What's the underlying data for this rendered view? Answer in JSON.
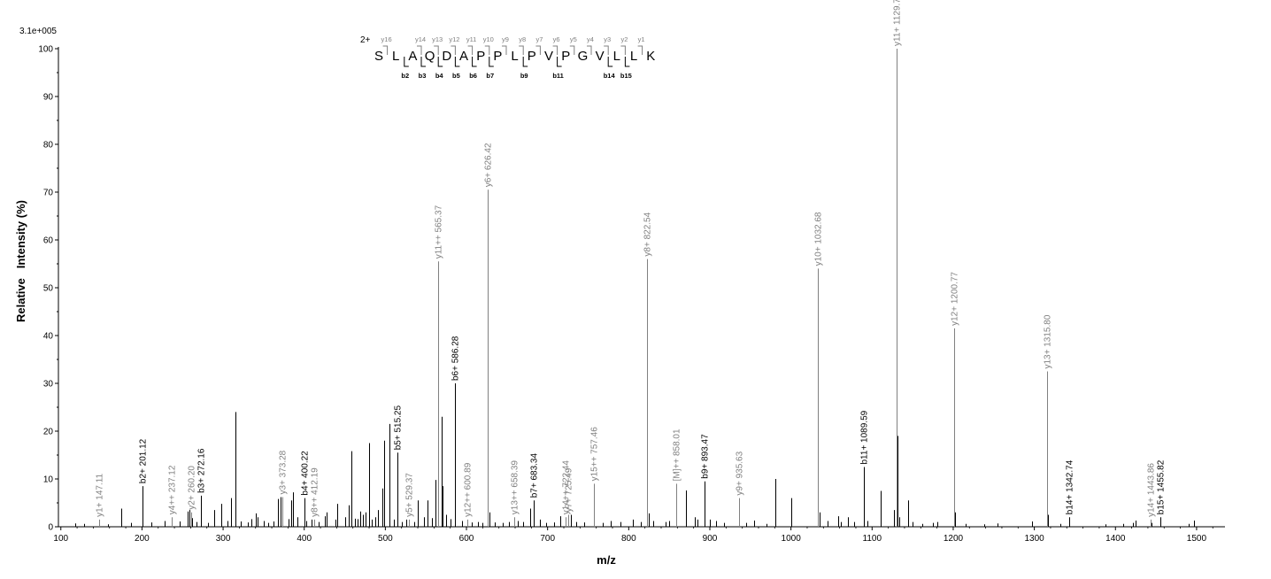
{
  "chart_data": {
    "type": "bar",
    "y_scale_label": "3.1e+005",
    "xlabel": "m/z",
    "ylabel": "Relative   Intensity (%)",
    "xlim": [
      97,
      1535
    ],
    "ylim": [
      0,
      100
    ],
    "x_ticks": [
      100,
      200,
      300,
      400,
      500,
      600,
      700,
      800,
      900,
      1000,
      1100,
      1200,
      1300,
      1400,
      1500
    ],
    "y_ticks": [
      0,
      10,
      20,
      30,
      40,
      50,
      60,
      70,
      80,
      90,
      100
    ],
    "colors": {
      "y_ion": "#808080",
      "b_ion": "#000000",
      "background_peak": "#000000"
    },
    "annotated_peaks": [
      {
        "mz": 147.11,
        "intensity": 1.5,
        "label": "y1+ 147.11",
        "series": "y"
      },
      {
        "mz": 201.12,
        "intensity": 8.5,
        "label": "b2+ 201.12",
        "series": "b"
      },
      {
        "mz": 237.12,
        "intensity": 2.0,
        "label": "y4++ 237.12",
        "series": "y"
      },
      {
        "mz": 260.2,
        "intensity": 3.0,
        "label": "y2+ 260.20",
        "series": "y"
      },
      {
        "mz": 272.16,
        "intensity": 6.5,
        "label": "b3+ 272.16",
        "series": "b"
      },
      {
        "mz": 373.28,
        "intensity": 6.2,
        "label": "y3+ 373.28",
        "series": "y"
      },
      {
        "mz": 400.22,
        "intensity": 6.0,
        "label": "b4+ 400.22",
        "series": "b"
      },
      {
        "mz": 412.19,
        "intensity": 1.5,
        "label": "y8++ 412.19",
        "series": "y"
      },
      {
        "mz": 515.25,
        "intensity": 15.5,
        "label": "b5+ 515.25",
        "series": "b"
      },
      {
        "mz": 529.37,
        "intensity": 1.5,
        "label": "y5+ 529.37",
        "series": "y"
      },
      {
        "mz": 565.37,
        "intensity": 55.5,
        "label": "y11++ 565.37",
        "series": "y"
      },
      {
        "mz": 586.28,
        "intensity": 30.0,
        "label": "b6+ 586.28",
        "series": "b"
      },
      {
        "mz": 600.89,
        "intensity": 1.5,
        "label": "y12++ 600.89",
        "series": "y"
      },
      {
        "mz": 626.42,
        "intensity": 70.5,
        "label": "y6+ 626.42",
        "series": "y"
      },
      {
        "mz": 658.39,
        "intensity": 2.0,
        "label": "y13++ 658.39",
        "series": "y"
      },
      {
        "mz": 683.34,
        "intensity": 5.5,
        "label": "b7+ 683.34",
        "series": "b"
      },
      {
        "mz": 722.44,
        "intensity": 2.0,
        "label": "y14++ 722.44",
        "series": "y"
      },
      {
        "mz": 725.49,
        "intensity": 2.5,
        "label": "y7+ 725.49",
        "series": "y"
      },
      {
        "mz": 757.46,
        "intensity": 9.0,
        "label": "y15++ 757.46",
        "series": "y"
      },
      {
        "mz": 822.54,
        "intensity": 56.0,
        "label": "y8+ 822.54",
        "series": "y"
      },
      {
        "mz": 858.01,
        "intensity": 9.0,
        "label": "[M]++ 858.01",
        "series": "y"
      },
      {
        "mz": 893.47,
        "intensity": 9.5,
        "label": "b9+ 893.47",
        "series": "b"
      },
      {
        "mz": 935.63,
        "intensity": 6.0,
        "label": "y9+ 935.63",
        "series": "y"
      },
      {
        "mz": 1032.68,
        "intensity": 54.0,
        "label": "y10+ 1032.68",
        "series": "y"
      },
      {
        "mz": 1089.59,
        "intensity": 12.5,
        "label": "b11+ 1089.59",
        "series": "b"
      },
      {
        "mz": 1129.73,
        "intensity": 100.0,
        "label": "y11+ 1129.73",
        "series": "y"
      },
      {
        "mz": 1200.77,
        "intensity": 41.5,
        "label": "y12+ 1200.77",
        "series": "y"
      },
      {
        "mz": 1315.8,
        "intensity": 32.5,
        "label": "y13+ 1315.80",
        "series": "y"
      },
      {
        "mz": 1342.74,
        "intensity": 2.0,
        "label": "b14+ 1342.74",
        "series": "b"
      },
      {
        "mz": 1443.86,
        "intensity": 1.5,
        "label": "y14+ 1443.86",
        "series": "y"
      },
      {
        "mz": 1455.82,
        "intensity": 2.0,
        "label": "b15+ 1455.82",
        "series": "b"
      }
    ],
    "background_peaks": [
      [
        118,
        0.7
      ],
      [
        129,
        0.6
      ],
      [
        158,
        0.5
      ],
      [
        175,
        3.8
      ],
      [
        186,
        0.8
      ],
      [
        212,
        0.9
      ],
      [
        228,
        1.2
      ],
      [
        246,
        1.1
      ],
      [
        256,
        3.2
      ],
      [
        258,
        3.5
      ],
      [
        262,
        1.8
      ],
      [
        267,
        1.0
      ],
      [
        281,
        0.8
      ],
      [
        289,
        3.5
      ],
      [
        298,
        4.8
      ],
      [
        305,
        1.2
      ],
      [
        310,
        6.0
      ],
      [
        315,
        24.0
      ],
      [
        322,
        1.1
      ],
      [
        330,
        0.9
      ],
      [
        335,
        1.6
      ],
      [
        340,
        2.8
      ],
      [
        343,
        2.0
      ],
      [
        350,
        1.2
      ],
      [
        356,
        0.8
      ],
      [
        362,
        1.1
      ],
      [
        368,
        5.8
      ],
      [
        371,
        6.2
      ],
      [
        381,
        1.6
      ],
      [
        384,
        5.5
      ],
      [
        386,
        7.2
      ],
      [
        392,
        2.0
      ],
      [
        402,
        1.2
      ],
      [
        409,
        1.5
      ],
      [
        418,
        1.0
      ],
      [
        425,
        2.2
      ],
      [
        428,
        3.0
      ],
      [
        438,
        1.5
      ],
      [
        441,
        4.8
      ],
      [
        451,
        2.0
      ],
      [
        455,
        4.5
      ],
      [
        458,
        15.8
      ],
      [
        463,
        1.7
      ],
      [
        466,
        1.6
      ],
      [
        469,
        3.2
      ],
      [
        472,
        2.5
      ],
      [
        476,
        3.0
      ],
      [
        480,
        17.5
      ],
      [
        483,
        1.5
      ],
      [
        488,
        2.0
      ],
      [
        491,
        3.5
      ],
      [
        496,
        8.0
      ],
      [
        498,
        18.0
      ],
      [
        505,
        21.5
      ],
      [
        510,
        1.5
      ],
      [
        520,
        1.0
      ],
      [
        526,
        1.5
      ],
      [
        536,
        1.0
      ],
      [
        540,
        5.5
      ],
      [
        548,
        2.0
      ],
      [
        552,
        5.5
      ],
      [
        557,
        1.8
      ],
      [
        562,
        9.8
      ],
      [
        569,
        23.0
      ],
      [
        571,
        8.5
      ],
      [
        575,
        2.5
      ],
      [
        580,
        1.6
      ],
      [
        594,
        1.2
      ],
      [
        606,
        0.9
      ],
      [
        614,
        1.0
      ],
      [
        620,
        0.8
      ],
      [
        628,
        3.0
      ],
      [
        635,
        0.9
      ],
      [
        645,
        0.8
      ],
      [
        652,
        1.0
      ],
      [
        663,
        1.2
      ],
      [
        670,
        1.0
      ],
      [
        678,
        3.8
      ],
      [
        690,
        1.5
      ],
      [
        698,
        0.8
      ],
      [
        708,
        0.9
      ],
      [
        716,
        2.2
      ],
      [
        729,
        2.5
      ],
      [
        735,
        1.0
      ],
      [
        745,
        0.9
      ],
      [
        768,
        0.8
      ],
      [
        778,
        1.2
      ],
      [
        790,
        1.0
      ],
      [
        805,
        1.5
      ],
      [
        815,
        1.0
      ],
      [
        825,
        2.8
      ],
      [
        830,
        1.2
      ],
      [
        845,
        1.0
      ],
      [
        850,
        1.2
      ],
      [
        871,
        7.6
      ],
      [
        881,
        2.0
      ],
      [
        885,
        1.5
      ],
      [
        900,
        1.5
      ],
      [
        908,
        1.2
      ],
      [
        918,
        0.8
      ],
      [
        945,
        0.8
      ],
      [
        955,
        1.3
      ],
      [
        970,
        0.6
      ],
      [
        981,
        10.0
      ],
      [
        1000,
        6.0
      ],
      [
        1035,
        3.0
      ],
      [
        1045,
        1.2
      ],
      [
        1058,
        2.2
      ],
      [
        1062,
        1.0
      ],
      [
        1070,
        2.0
      ],
      [
        1078,
        1.0
      ],
      [
        1094,
        1.2
      ],
      [
        1111,
        7.5
      ],
      [
        1127,
        3.5
      ],
      [
        1131,
        19.0
      ],
      [
        1133,
        2.0
      ],
      [
        1144,
        5.5
      ],
      [
        1150,
        1.0
      ],
      [
        1162,
        0.6
      ],
      [
        1175,
        0.8
      ],
      [
        1180,
        1.0
      ],
      [
        1202,
        3.0
      ],
      [
        1215,
        0.6
      ],
      [
        1238,
        0.5
      ],
      [
        1255,
        0.7
      ],
      [
        1297,
        1.1
      ],
      [
        1317,
        2.5
      ],
      [
        1332,
        0.6
      ],
      [
        1388,
        0.5
      ],
      [
        1410,
        0.6
      ],
      [
        1422,
        0.8
      ],
      [
        1425,
        1.3
      ],
      [
        1444,
        0.8
      ],
      [
        1490,
        0.6
      ],
      [
        1497,
        1.3
      ]
    ],
    "sequence": {
      "charge_label": "2+",
      "letters": [
        "S",
        "L",
        "A",
        "Q",
        "D",
        "A",
        "P",
        "P",
        "L",
        "P",
        "V",
        "P",
        "G",
        "V",
        "L",
        "L",
        "K"
      ],
      "y_ions": [
        {
          "label": "y16",
          "after": 1
        },
        {
          "label": "y14",
          "after": 3
        },
        {
          "label": "y13",
          "after": 4
        },
        {
          "label": "y12",
          "after": 5
        },
        {
          "label": "y11",
          "after": 6
        },
        {
          "label": "y10",
          "after": 7
        },
        {
          "label": "y9",
          "after": 8
        },
        {
          "label": "y8",
          "after": 9
        },
        {
          "label": "y7",
          "after": 10
        },
        {
          "label": "y6",
          "after": 11
        },
        {
          "label": "y5",
          "after": 12
        },
        {
          "label": "y4",
          "after": 13
        },
        {
          "label": "y3",
          "after": 14
        },
        {
          "label": "y2",
          "after": 15
        },
        {
          "label": "y1",
          "after": 16
        }
      ],
      "b_ions": [
        {
          "label": "b2",
          "after": 2
        },
        {
          "label": "b3",
          "after": 3
        },
        {
          "label": "b4",
          "after": 4
        },
        {
          "label": "b5",
          "after": 5
        },
        {
          "label": "b6",
          "after": 6
        },
        {
          "label": "b7",
          "after": 7
        },
        {
          "label": "b9",
          "after": 9
        },
        {
          "label": "b11",
          "after": 11
        },
        {
          "label": "b14",
          "after": 14
        },
        {
          "label": "b15",
          "after": 15
        }
      ]
    }
  }
}
